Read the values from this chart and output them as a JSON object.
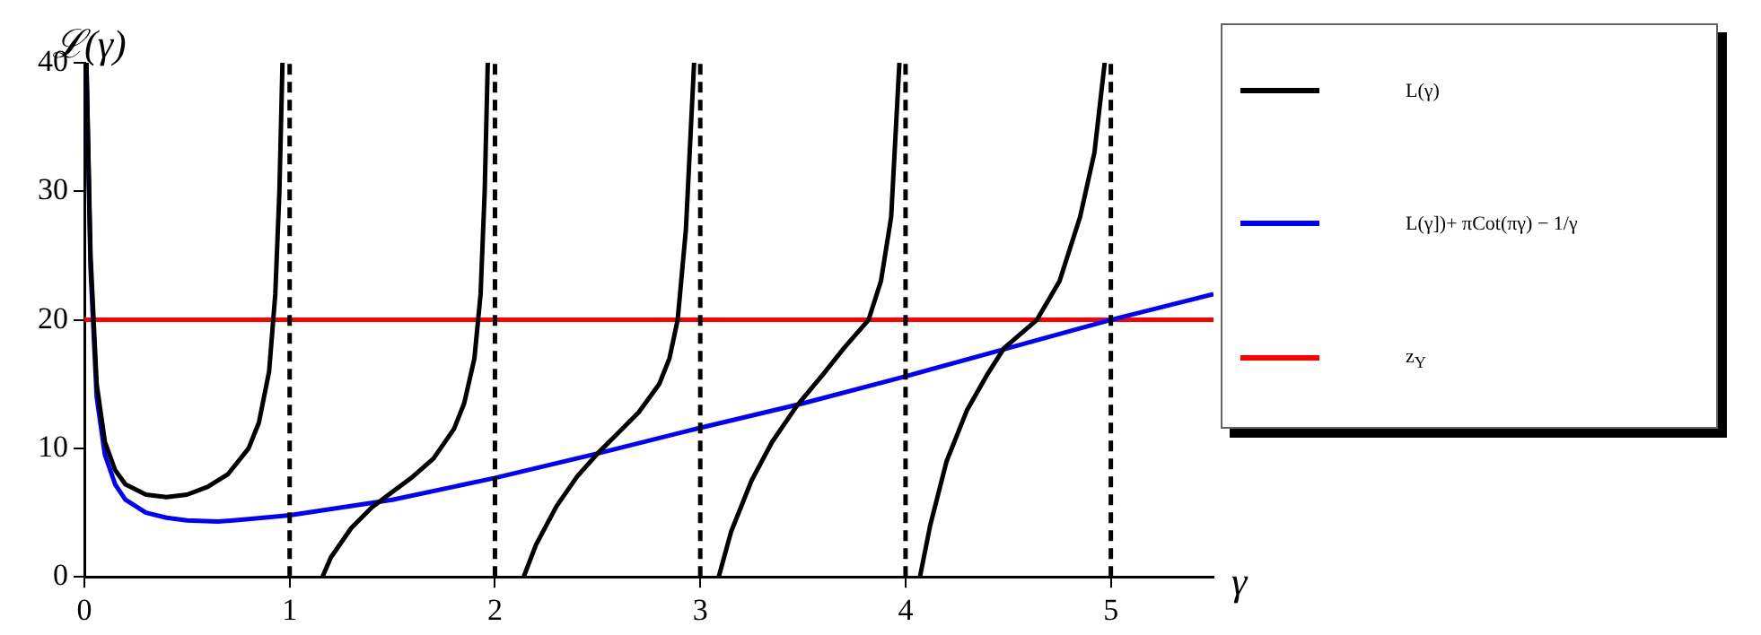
{
  "chart_data": {
    "type": "line",
    "xlabel": "γ",
    "ylabel": "ℒ(γ)",
    "xlim": [
      0,
      5.5
    ],
    "xticks": [
      0,
      1,
      2,
      3,
      4,
      5
    ],
    "ylim": [
      0,
      40
    ],
    "yticks": [
      0,
      10,
      20,
      30,
      40
    ],
    "grid": false,
    "legend": "top right",
    "marker": "none",
    "line_style": "solid",
    "series": [
      {
        "name": "L(γ)",
        "color": "#000000",
        "x": [
          0.01,
          0.03,
          0.06,
          0.1,
          0.15,
          0.2,
          0.3,
          0.4,
          0.5,
          0.6,
          0.7,
          0.8,
          0.85,
          0.9,
          0.93,
          0.95,
          0.965,
          0.98,
          1.16,
          1.2,
          1.3,
          1.4,
          1.5,
          1.6,
          1.7,
          1.8,
          1.85,
          1.9,
          1.93,
          1.95,
          1.965,
          2.0,
          2.14,
          2.2,
          2.3,
          2.4,
          2.5,
          2.6,
          2.7,
          2.8,
          2.85,
          2.89,
          2.93,
          2.97,
          3.0,
          3.09,
          3.15,
          3.25,
          3.35,
          3.47,
          3.6,
          3.7,
          3.82,
          3.88,
          3.93,
          3.97,
          4.0,
          4.07,
          4.12,
          4.2,
          4.3,
          4.4,
          4.48,
          4.64,
          4.75,
          4.85,
          4.92,
          4.97
        ],
        "values": [
          40,
          25,
          15,
          10.5,
          8.3,
          7.2,
          6.4,
          6.2,
          6.4,
          7.0,
          8.0,
          10.0,
          12,
          16,
          22,
          30,
          40,
          null,
          0,
          1.5,
          3.8,
          5.4,
          6.6,
          7.8,
          9.2,
          11.5,
          13.5,
          17,
          22,
          30,
          40,
          null,
          0,
          2.5,
          5.5,
          7.8,
          9.6,
          11.2,
          12.8,
          15,
          17,
          20,
          27,
          40,
          null,
          0,
          3.5,
          7.5,
          10.5,
          13.3,
          15.8,
          17.8,
          20,
          23,
          28,
          40,
          null,
          0,
          4,
          9,
          13,
          15.8,
          17.8,
          20,
          23,
          28,
          33,
          40
        ]
      },
      {
        "name": "L(γ])+ πCot(πγ) − 1/γ",
        "color": "#0000ff",
        "x": [
          0.01,
          0.03,
          0.06,
          0.1,
          0.15,
          0.2,
          0.3,
          0.4,
          0.5,
          0.65,
          0.8,
          1,
          1.5,
          2,
          2.5,
          3,
          3.5,
          4,
          4.5,
          5,
          5.5
        ],
        "values": [
          40,
          24,
          14,
          9.5,
          7.2,
          6.0,
          5,
          4.6,
          4.4,
          4.3,
          4.5,
          4.8,
          6.0,
          7.7,
          9.6,
          11.6,
          13.5,
          15.6,
          17.8,
          20,
          22
        ]
      },
      {
        "name": "z$_{Y}$",
        "color": "#ff0000",
        "x": [
          0,
          5.5
        ],
        "values": [
          20,
          20
        ]
      }
    ],
    "ref_lines": [
      {
        "axis": "x",
        "value": 1,
        "color": "#000000",
        "line_style": "dashed"
      },
      {
        "axis": "x",
        "value": 2,
        "color": "#000000",
        "line_style": "dashed"
      },
      {
        "axis": "x",
        "value": 3,
        "color": "#000000",
        "line_style": "dashed"
      },
      {
        "axis": "x",
        "value": 4,
        "color": "#000000",
        "line_style": "dashed"
      },
      {
        "axis": "x",
        "value": 5,
        "color": "#000000",
        "line_style": "dashed"
      }
    ]
  }
}
